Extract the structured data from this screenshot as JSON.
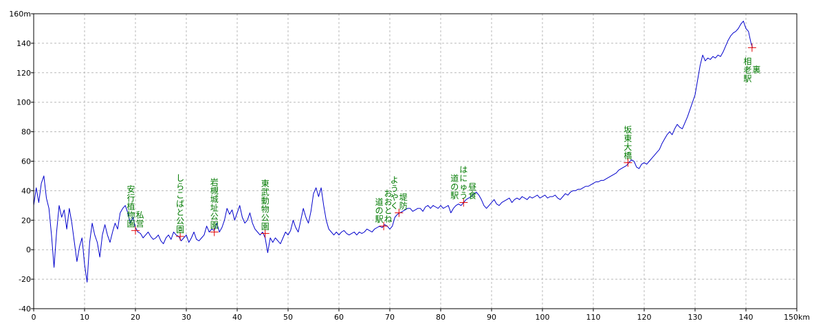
{
  "colors": {
    "line": "#0000cc",
    "marker": "#e00000",
    "annotation": "#007a00",
    "grid": "#b8b8b8",
    "axis": "#000000"
  },
  "chart_data": {
    "type": "line",
    "title": "",
    "xlabel": "",
    "ylabel": "",
    "x_unit": "km",
    "y_unit": "m",
    "xlim": [
      0,
      150
    ],
    "ylim": [
      -40,
      160
    ],
    "grid": true,
    "x_ticks": [
      "0",
      "10",
      "20",
      "30",
      "40",
      "50",
      "60",
      "70",
      "80",
      "90",
      "100",
      "110",
      "120",
      "130",
      "140",
      "150km"
    ],
    "y_ticks": [
      "160m",
      "140",
      "120",
      "100",
      "80",
      "60",
      "40",
      "20",
      "0",
      "-20",
      "-40"
    ],
    "series": [
      {
        "values": [
          [
            0,
            30
          ],
          [
            0.5,
            42
          ],
          [
            1,
            32
          ],
          [
            1.5,
            45
          ],
          [
            2,
            50
          ],
          [
            2.5,
            35
          ],
          [
            3,
            28
          ],
          [
            3.5,
            10
          ],
          [
            4,
            -12
          ],
          [
            4.5,
            12
          ],
          [
            5,
            30
          ],
          [
            5.5,
            22
          ],
          [
            6,
            27
          ],
          [
            6.5,
            14
          ],
          [
            7,
            28
          ],
          [
            7.5,
            18
          ],
          [
            8,
            5
          ],
          [
            8.5,
            -8
          ],
          [
            9,
            2
          ],
          [
            9.5,
            8
          ],
          [
            10,
            -10
          ],
          [
            10.5,
            -22
          ],
          [
            11,
            5
          ],
          [
            11.5,
            18
          ],
          [
            12,
            10
          ],
          [
            12.5,
            5
          ],
          [
            13,
            -5
          ],
          [
            13.5,
            10
          ],
          [
            14,
            17
          ],
          [
            14.5,
            10
          ],
          [
            15,
            5
          ],
          [
            15.5,
            12
          ],
          [
            16,
            18
          ],
          [
            16.5,
            14
          ],
          [
            17,
            25
          ],
          [
            17.5,
            28
          ],
          [
            18,
            30
          ],
          [
            18.5,
            25
          ],
          [
            19,
            18
          ],
          [
            19.5,
            22
          ],
          [
            20,
            15
          ],
          [
            20.5,
            12
          ],
          [
            21,
            11
          ],
          [
            21.5,
            8
          ],
          [
            22,
            10
          ],
          [
            22.5,
            12
          ],
          [
            23,
            9
          ],
          [
            23.5,
            7
          ],
          [
            24,
            8
          ],
          [
            24.5,
            10
          ],
          [
            25,
            6
          ],
          [
            25.5,
            4
          ],
          [
            26,
            8
          ],
          [
            26.5,
            10
          ],
          [
            27,
            7
          ],
          [
            27.5,
            12
          ],
          [
            28,
            10
          ],
          [
            28.5,
            9
          ],
          [
            29,
            6
          ],
          [
            29.5,
            8
          ],
          [
            30,
            10
          ],
          [
            30.5,
            5
          ],
          [
            31,
            8
          ],
          [
            31.5,
            12
          ],
          [
            32,
            7
          ],
          [
            32.5,
            6
          ],
          [
            33,
            8
          ],
          [
            33.5,
            10
          ],
          [
            34,
            16
          ],
          [
            34.5,
            12
          ],
          [
            35,
            14
          ],
          [
            35.5,
            13
          ],
          [
            36,
            18
          ],
          [
            36.5,
            12
          ],
          [
            37,
            15
          ],
          [
            37.5,
            20
          ],
          [
            38,
            28
          ],
          [
            38.5,
            24
          ],
          [
            39,
            27
          ],
          [
            39.5,
            20
          ],
          [
            40,
            25
          ],
          [
            40.5,
            30
          ],
          [
            41,
            22
          ],
          [
            41.5,
            18
          ],
          [
            42,
            20
          ],
          [
            42.5,
            25
          ],
          [
            43,
            18
          ],
          [
            43.5,
            14
          ],
          [
            44,
            12
          ],
          [
            44.5,
            10
          ],
          [
            45,
            12
          ],
          [
            45.5,
            8
          ],
          [
            46,
            -2
          ],
          [
            46.5,
            8
          ],
          [
            47,
            5
          ],
          [
            47.5,
            8
          ],
          [
            48,
            6
          ],
          [
            48.5,
            4
          ],
          [
            49,
            8
          ],
          [
            49.5,
            12
          ],
          [
            50,
            10
          ],
          [
            50.5,
            13
          ],
          [
            51,
            20
          ],
          [
            51.5,
            15
          ],
          [
            52,
            12
          ],
          [
            52.5,
            20
          ],
          [
            53,
            28
          ],
          [
            53.5,
            22
          ],
          [
            54,
            18
          ],
          [
            54.5,
            26
          ],
          [
            55,
            38
          ],
          [
            55.5,
            42
          ],
          [
            56,
            36
          ],
          [
            56.5,
            42
          ],
          [
            57,
            30
          ],
          [
            57.5,
            20
          ],
          [
            58,
            14
          ],
          [
            58.5,
            12
          ],
          [
            59,
            10
          ],
          [
            59.5,
            12
          ],
          [
            60,
            10
          ],
          [
            60.5,
            12
          ],
          [
            61,
            13
          ],
          [
            61.5,
            11
          ],
          [
            62,
            10
          ],
          [
            62.5,
            11
          ],
          [
            63,
            12
          ],
          [
            63.5,
            10
          ],
          [
            64,
            12
          ],
          [
            64.5,
            11
          ],
          [
            65,
            12
          ],
          [
            65.5,
            14
          ],
          [
            66,
            13
          ],
          [
            66.5,
            12
          ],
          [
            67,
            14
          ],
          [
            67.5,
            15
          ],
          [
            68,
            16
          ],
          [
            68.5,
            15
          ],
          [
            69,
            17
          ],
          [
            69.5,
            16
          ],
          [
            70,
            14
          ],
          [
            70.5,
            16
          ],
          [
            71,
            22
          ],
          [
            71.5,
            24
          ],
          [
            72,
            25
          ],
          [
            72.5,
            26
          ],
          [
            73,
            27
          ],
          [
            73.5,
            28
          ],
          [
            74,
            28
          ],
          [
            74.5,
            26
          ],
          [
            75,
            27
          ],
          [
            75.5,
            28
          ],
          [
            76,
            28
          ],
          [
            76.5,
            26
          ],
          [
            77,
            29
          ],
          [
            77.5,
            30
          ],
          [
            78,
            28
          ],
          [
            78.5,
            30
          ],
          [
            79,
            29
          ],
          [
            79.5,
            28
          ],
          [
            80,
            30
          ],
          [
            80.5,
            28
          ],
          [
            81,
            29
          ],
          [
            81.5,
            30
          ],
          [
            82,
            25
          ],
          [
            82.5,
            28
          ],
          [
            83,
            30
          ],
          [
            83.5,
            31
          ],
          [
            84,
            30
          ],
          [
            84.5,
            32
          ],
          [
            85,
            34
          ],
          [
            85.5,
            35
          ],
          [
            86,
            36
          ],
          [
            86.5,
            38
          ],
          [
            87,
            39
          ],
          [
            87.5,
            37
          ],
          [
            88,
            34
          ],
          [
            88.5,
            30
          ],
          [
            89,
            28
          ],
          [
            89.5,
            30
          ],
          [
            90,
            32
          ],
          [
            90.5,
            34
          ],
          [
            91,
            31
          ],
          [
            91.5,
            30
          ],
          [
            92,
            32
          ],
          [
            92.5,
            33
          ],
          [
            93,
            34
          ],
          [
            93.5,
            35
          ],
          [
            94,
            32
          ],
          [
            94.5,
            34
          ],
          [
            95,
            35
          ],
          [
            95.5,
            34
          ],
          [
            96,
            36
          ],
          [
            96.5,
            35
          ],
          [
            97,
            34
          ],
          [
            97.5,
            36
          ],
          [
            98,
            35
          ],
          [
            98.5,
            36
          ],
          [
            99,
            37
          ],
          [
            99.5,
            35
          ],
          [
            100,
            36
          ],
          [
            100.5,
            37
          ],
          [
            101,
            35
          ],
          [
            101.5,
            36
          ],
          [
            102,
            36
          ],
          [
            102.5,
            37
          ],
          [
            103,
            35
          ],
          [
            103.5,
            34
          ],
          [
            104,
            36
          ],
          [
            104.5,
            38
          ],
          [
            105,
            37
          ],
          [
            105.5,
            39
          ],
          [
            106,
            40
          ],
          [
            106.5,
            40
          ],
          [
            107,
            41
          ],
          [
            107.5,
            41
          ],
          [
            108,
            42
          ],
          [
            108.5,
            43
          ],
          [
            109,
            43
          ],
          [
            109.5,
            44
          ],
          [
            110,
            45
          ],
          [
            110.5,
            46
          ],
          [
            111,
            46
          ],
          [
            111.5,
            47
          ],
          [
            112,
            47
          ],
          [
            112.5,
            48
          ],
          [
            113,
            49
          ],
          [
            113.5,
            50
          ],
          [
            114,
            51
          ],
          [
            114.5,
            52
          ],
          [
            115,
            54
          ],
          [
            115.5,
            55
          ],
          [
            116,
            56
          ],
          [
            116.5,
            57
          ],
          [
            117,
            59
          ],
          [
            117.5,
            61
          ],
          [
            118,
            60
          ],
          [
            118.5,
            56
          ],
          [
            119,
            55
          ],
          [
            119.5,
            58
          ],
          [
            120,
            59
          ],
          [
            120.5,
            58
          ],
          [
            121,
            60
          ],
          [
            121.5,
            62
          ],
          [
            122,
            64
          ],
          [
            122.5,
            66
          ],
          [
            123,
            68
          ],
          [
            123.5,
            72
          ],
          [
            124,
            75
          ],
          [
            124.5,
            78
          ],
          [
            125,
            80
          ],
          [
            125.5,
            78
          ],
          [
            126,
            82
          ],
          [
            126.5,
            85
          ],
          [
            127,
            83
          ],
          [
            127.5,
            82
          ],
          [
            128,
            86
          ],
          [
            128.5,
            90
          ],
          [
            129,
            95
          ],
          [
            129.5,
            100
          ],
          [
            130,
            105
          ],
          [
            130.5,
            115
          ],
          [
            131,
            125
          ],
          [
            131.5,
            132
          ],
          [
            132,
            128
          ],
          [
            132.5,
            130
          ],
          [
            133,
            129
          ],
          [
            133.5,
            131
          ],
          [
            134,
            130
          ],
          [
            134.5,
            132
          ],
          [
            135,
            131
          ],
          [
            135.5,
            134
          ],
          [
            136,
            138
          ],
          [
            136.5,
            142
          ],
          [
            137,
            145
          ],
          [
            137.5,
            147
          ],
          [
            138,
            148
          ],
          [
            138.5,
            150
          ],
          [
            139,
            153
          ],
          [
            139.5,
            155
          ],
          [
            140,
            150
          ],
          [
            140.5,
            148
          ],
          [
            141,
            140
          ],
          [
            141.3,
            137
          ]
        ]
      }
    ],
    "annotations": [
      {
        "x": 20,
        "y": 13,
        "label": "安行植物園　私営"
      },
      {
        "x": 28.8,
        "y": 9,
        "label": "しらこばと公園"
      },
      {
        "x": 35.5,
        "y": 12,
        "label": "岩槻城址公園"
      },
      {
        "x": 45.5,
        "y": 11,
        "label": "東武動物公園"
      },
      {
        "x": 68.8,
        "y": 16,
        "label": "道の駅　おおとね"
      },
      {
        "x": 71.8,
        "y": 25,
        "label": "ようやく　堤防"
      },
      {
        "x": 84.5,
        "y": 32,
        "label": "道の駅　はにゅう　昼食"
      },
      {
        "x": 116.8,
        "y": 59,
        "label": "坂東大橋"
      },
      {
        "x": 141.2,
        "y": 137,
        "label": "相老駅　裏"
      }
    ]
  }
}
